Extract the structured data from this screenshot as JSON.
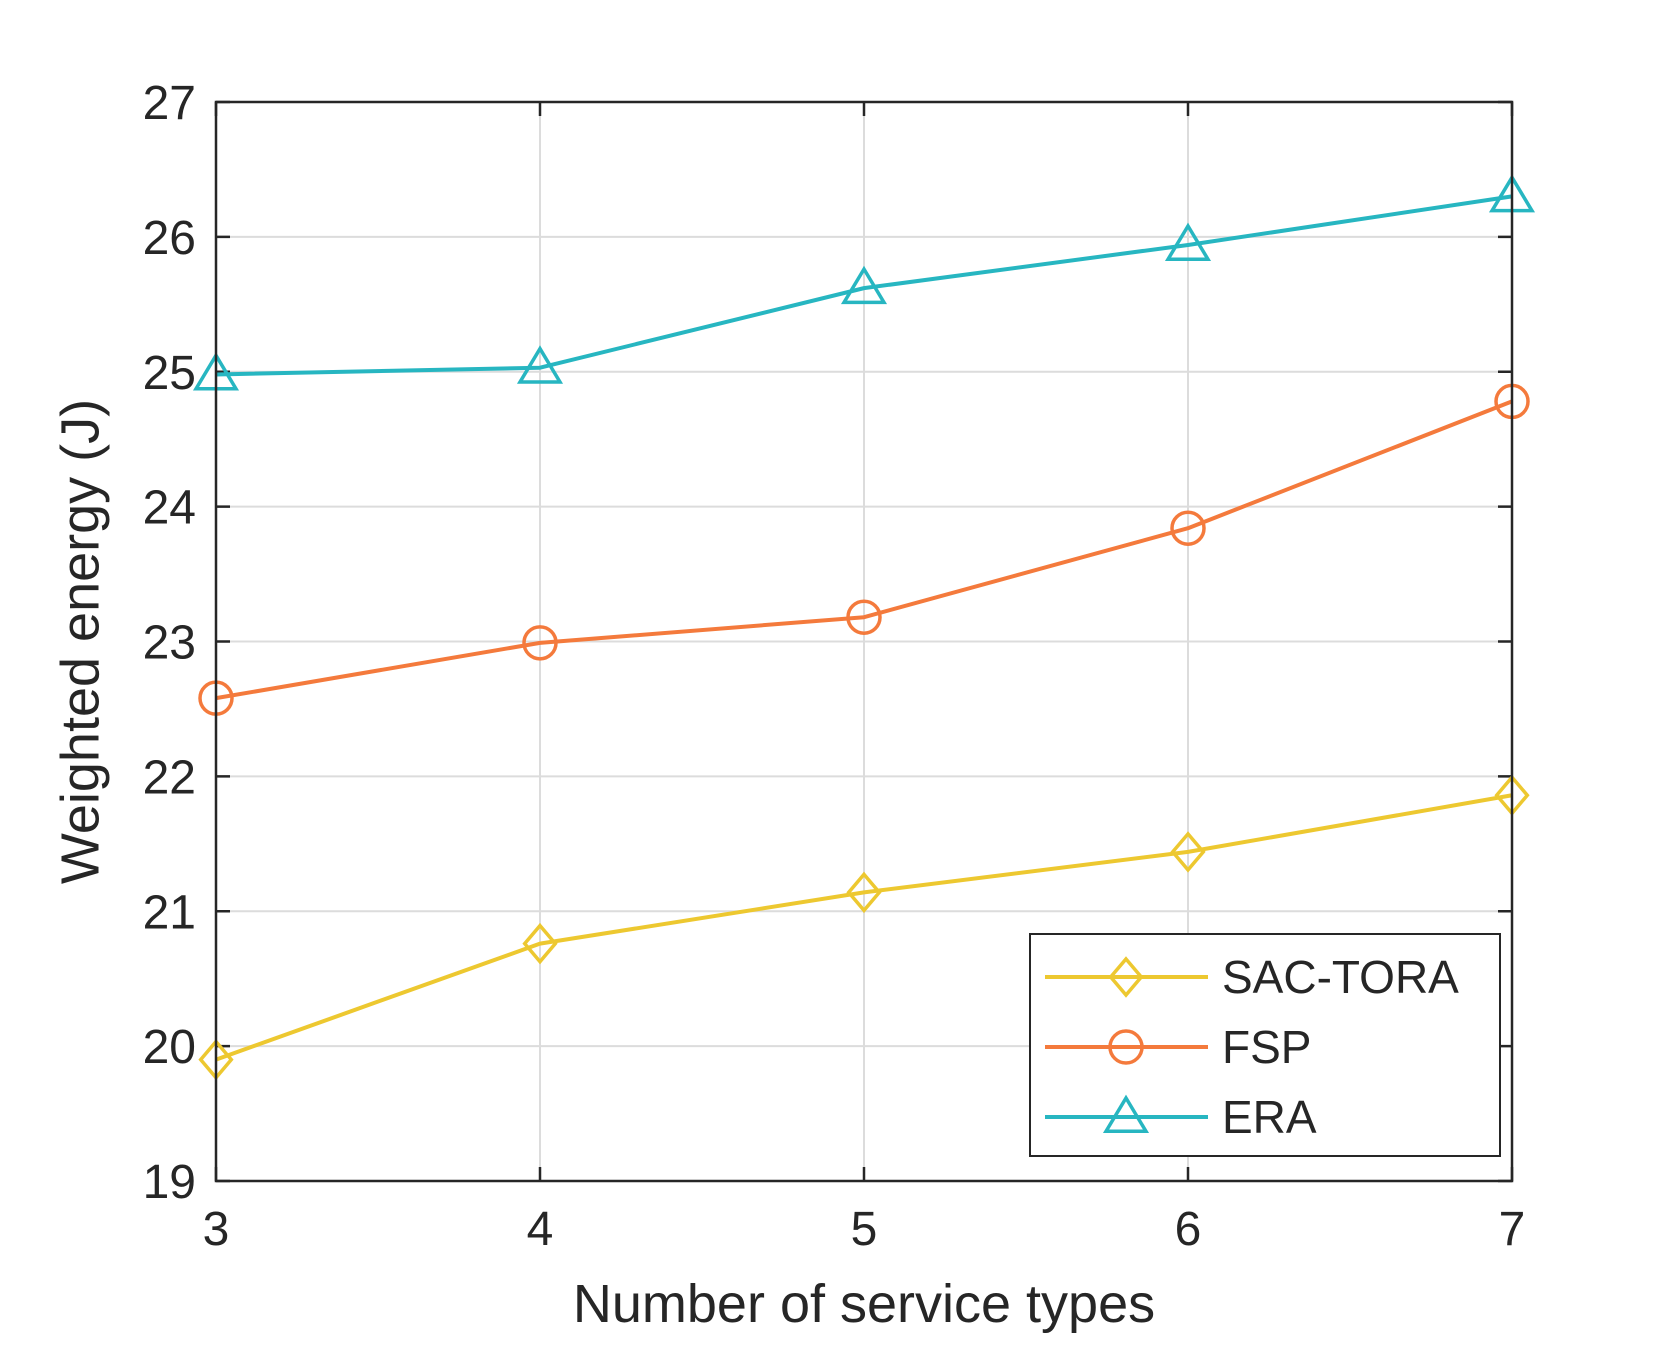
{
  "chart_data": {
    "type": "line",
    "title": "",
    "xlabel": "Number of service types",
    "ylabel": "Weighted energy (J)",
    "x": [
      3,
      4,
      5,
      6,
      7
    ],
    "xlim": [
      3,
      7
    ],
    "ylim": [
      19,
      27
    ],
    "xticks": [
      "3",
      "4",
      "5",
      "6",
      "7"
    ],
    "yticks": [
      "19",
      "20",
      "21",
      "22",
      "23",
      "24",
      "25",
      "26",
      "27"
    ],
    "grid": true,
    "legend_position": "bottom-right",
    "series": [
      {
        "name": "SAC-TORA",
        "color": "#EDC830",
        "marker": "diamond",
        "values": [
          19.9,
          20.76,
          21.14,
          21.44,
          21.86
        ]
      },
      {
        "name": "FSP",
        "color": "#F47A3C",
        "marker": "circle",
        "values": [
          22.58,
          22.99,
          23.18,
          23.84,
          24.78
        ]
      },
      {
        "name": "ERA",
        "color": "#27B6C1",
        "marker": "triangle",
        "values": [
          24.98,
          25.03,
          25.62,
          25.94,
          26.3
        ]
      }
    ]
  }
}
